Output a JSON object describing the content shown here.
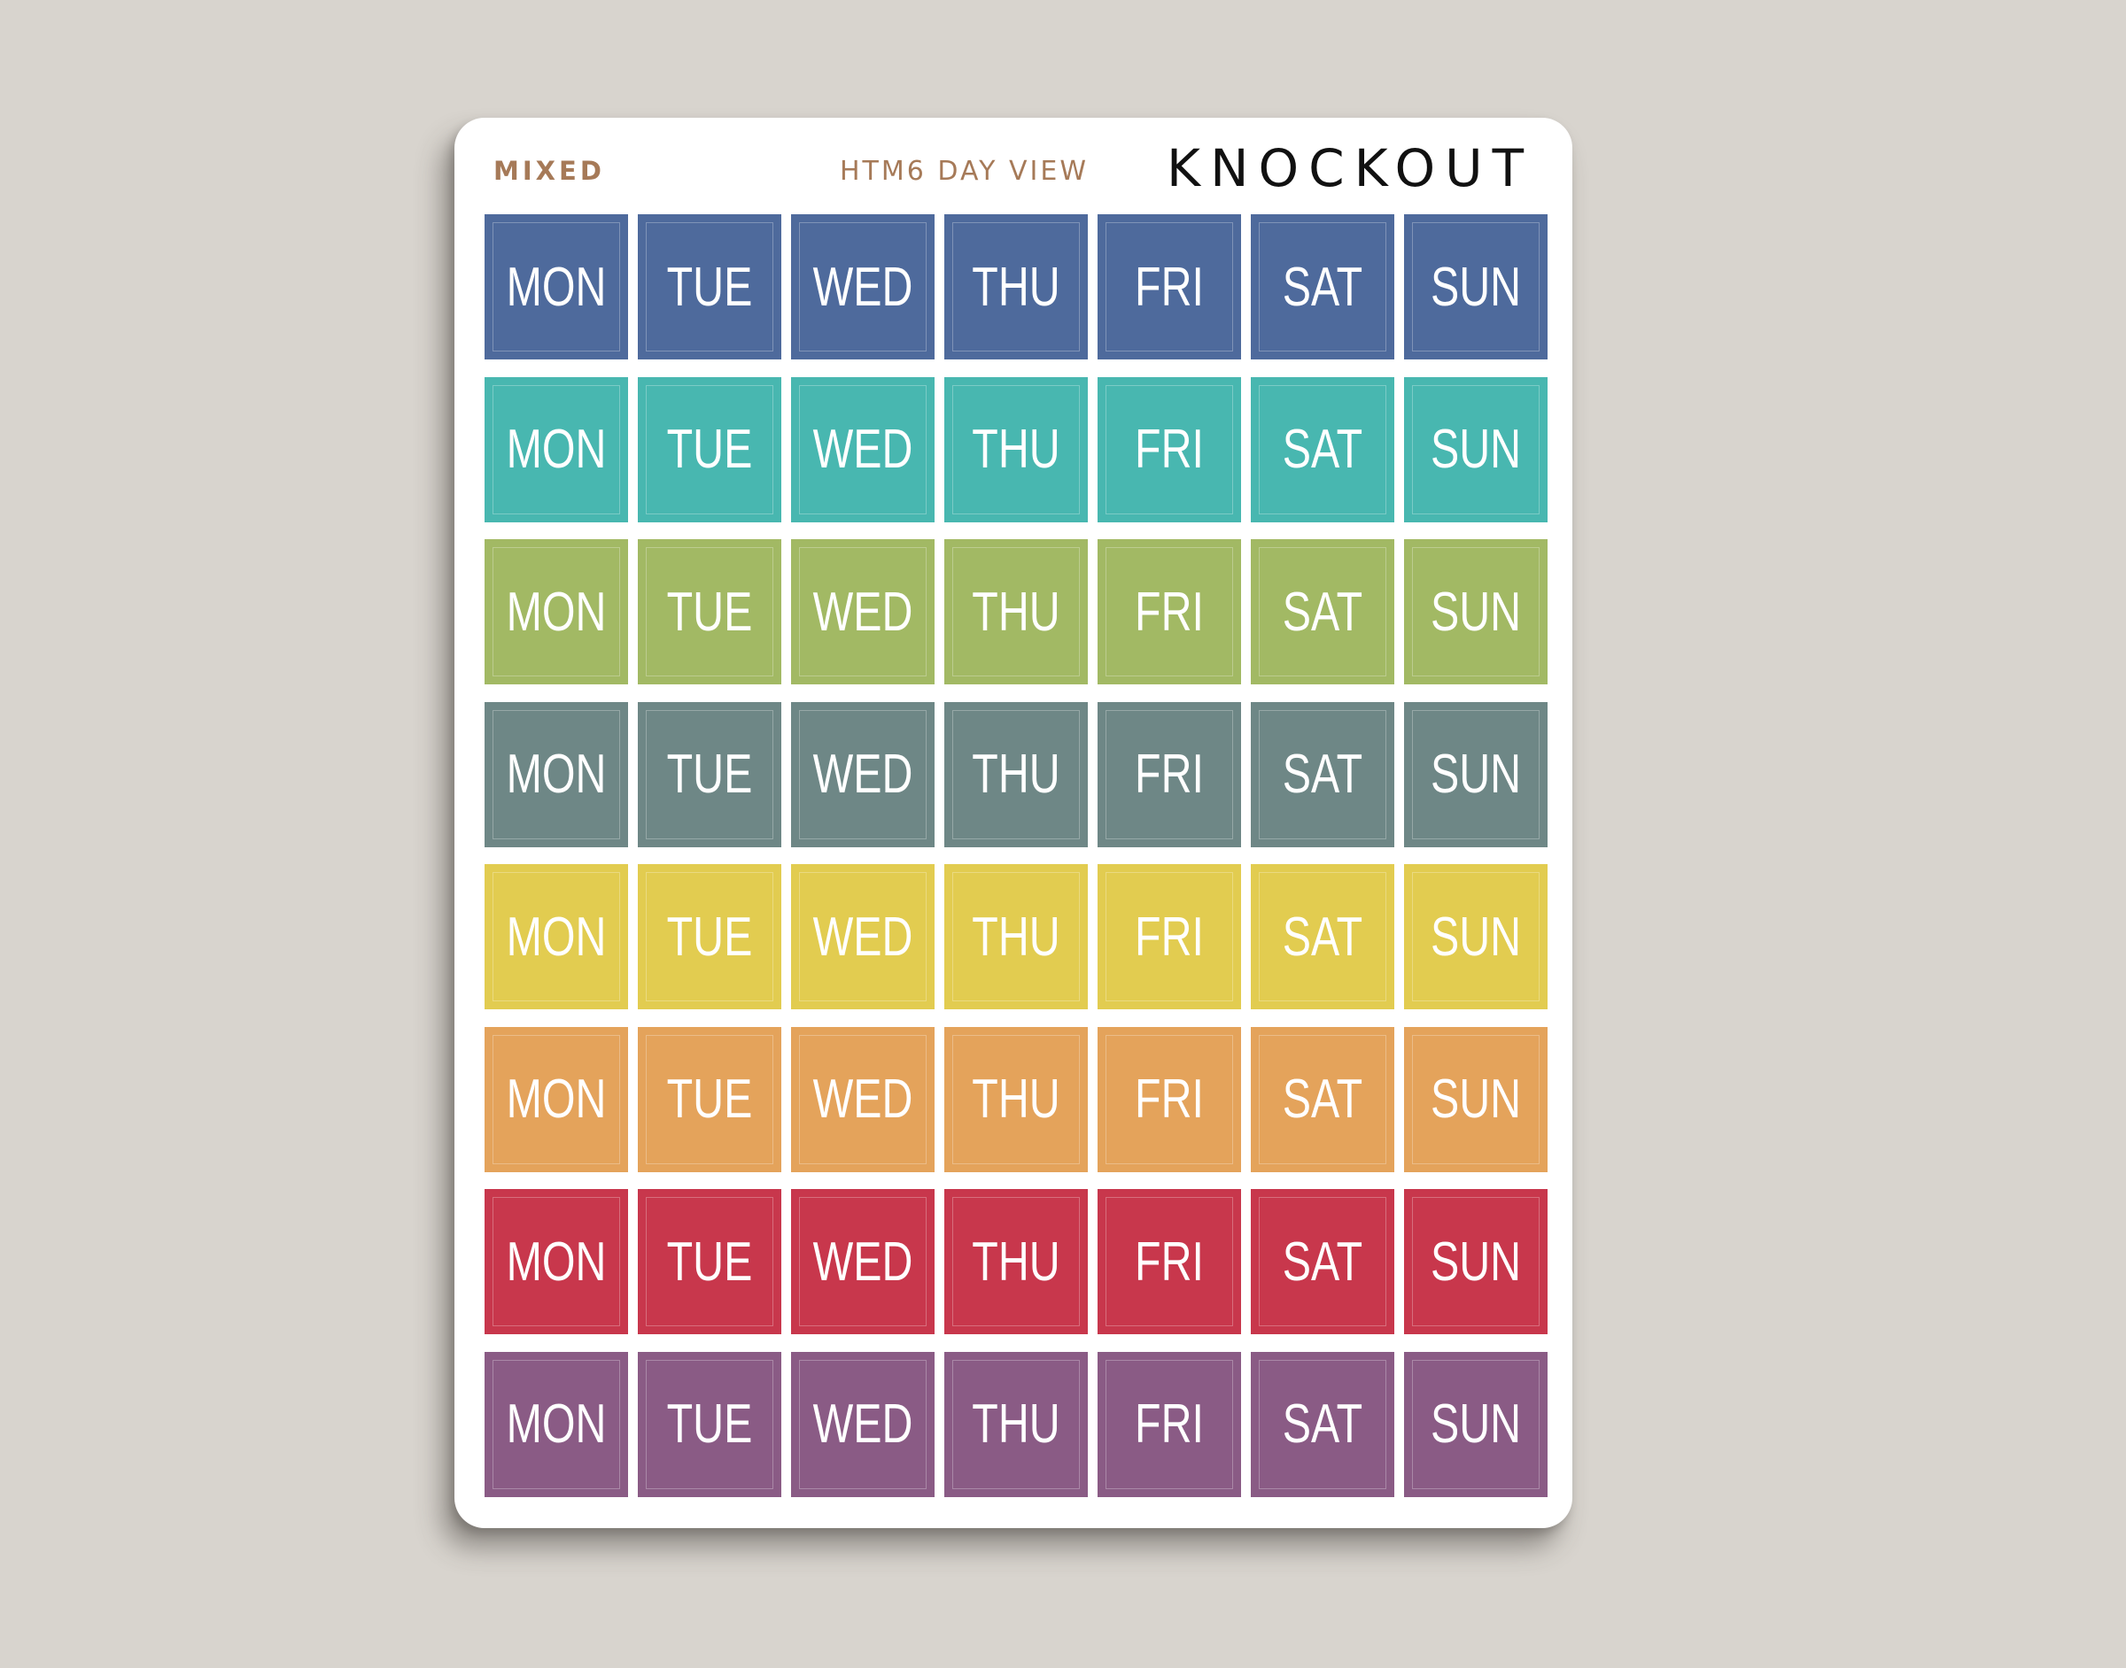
{
  "sheet": {
    "variant_label": "MIXED",
    "product_label": "HTM6 DAY VIEW",
    "brand": "KNOCKOUT"
  },
  "days": [
    "MON",
    "TUE",
    "WED",
    "THU",
    "FRI",
    "SAT",
    "SUN"
  ],
  "rows": [
    {
      "color": "#4e6a9c"
    },
    {
      "color": "#48b7b0"
    },
    {
      "color": "#a2b964"
    },
    {
      "color": "#6e8786"
    },
    {
      "color": "#e2cc50"
    },
    {
      "color": "#e4a35b"
    },
    {
      "color": "#c8374c"
    },
    {
      "color": "#8a5b85"
    }
  ]
}
